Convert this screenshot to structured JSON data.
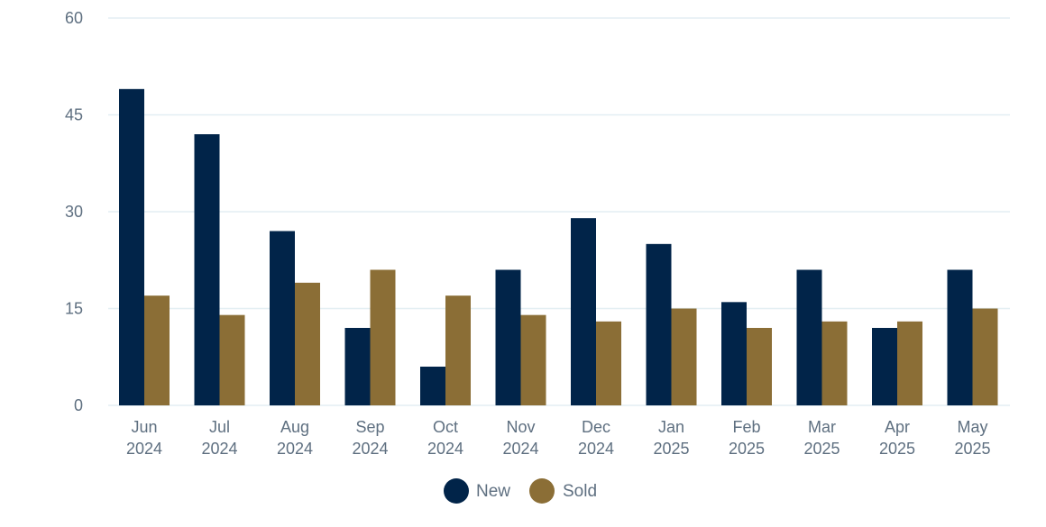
{
  "colors": {
    "new": "#012449",
    "sold": "#8B6E36",
    "grid": "#e3eef3",
    "text": "#5e6f80"
  },
  "chart_data": {
    "type": "bar",
    "categories": [
      [
        "Jun",
        "2024"
      ],
      [
        "Jul",
        "2024"
      ],
      [
        "Aug",
        "2024"
      ],
      [
        "Sep",
        "2024"
      ],
      [
        "Oct",
        "2024"
      ],
      [
        "Nov",
        "2024"
      ],
      [
        "Dec",
        "2024"
      ],
      [
        "Jan",
        "2025"
      ],
      [
        "Feb",
        "2025"
      ],
      [
        "Mar",
        "2025"
      ],
      [
        "Apr",
        "2025"
      ],
      [
        "May",
        "2025"
      ]
    ],
    "series": [
      {
        "name": "New",
        "color_key": "new",
        "values": [
          49,
          42,
          27,
          12,
          6,
          21,
          29,
          25,
          16,
          21,
          12,
          21
        ]
      },
      {
        "name": "Sold",
        "color_key": "sold",
        "values": [
          17,
          14,
          19,
          21,
          17,
          14,
          13,
          15,
          12,
          13,
          13,
          15
        ]
      }
    ],
    "y_ticks": [
      "0",
      "15",
      "30",
      "45",
      "60"
    ],
    "ylim": [
      0,
      60
    ],
    "grid": true,
    "legend_position": "bottom-center"
  }
}
